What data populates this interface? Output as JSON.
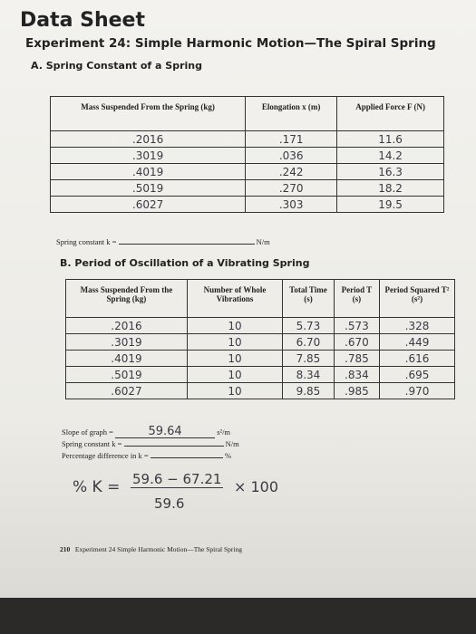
{
  "title": "Data Sheet",
  "experiment": "Experiment 24: Simple Harmonic Motion—The Spiral Spring",
  "section_a": {
    "title": "A. Spring Constant of a Spring",
    "table": {
      "headers": [
        "Mass Suspended From the Spring (kg)",
        "Elongation x (m)",
        "Applied Force F (N)"
      ],
      "rows": [
        [
          ".2016",
          ".171",
          "11.6"
        ],
        [
          ".3019",
          ".036",
          "14.2"
        ],
        [
          ".4019",
          ".242",
          "16.3"
        ],
        [
          ".5019",
          ".270",
          "18.2"
        ],
        [
          ".6027",
          ".303",
          "19.5"
        ]
      ]
    },
    "spring_constant": {
      "label": "Spring constant k =",
      "unit": "N/m"
    }
  },
  "section_b": {
    "title": "B. Period of Oscillation of a Vibrating Spring",
    "table": {
      "headers": [
        "Mass Suspended From the Spring (kg)",
        "Number of Whole Vibrations",
        "Total Time (s)",
        "Period T (s)",
        "Period Squared T² (s²)"
      ],
      "rows": [
        [
          ".2016",
          "10",
          "5.73",
          ".573",
          ".328"
        ],
        [
          ".3019",
          "10",
          "6.70",
          ".670",
          ".449"
        ],
        [
          ".4019",
          "10",
          "7.85",
          ".785",
          ".616"
        ],
        [
          ".5019",
          "10",
          "8.34",
          ".834",
          ".695"
        ],
        [
          ".6027",
          "10",
          "9.85",
          ".985",
          ".970"
        ]
      ]
    },
    "slope": {
      "label": "Slope of graph =",
      "value": "59.64",
      "unit": "s²/m"
    },
    "spring_constant": {
      "label": "Spring constant k =",
      "unit": "N/m"
    },
    "percentage_difference": {
      "label": "Percentage difference in k =",
      "unit": "%"
    }
  },
  "handwritten_formula": {
    "lhs": "% K =",
    "numerator": "59.6 − 67.21",
    "denominator": "59.6",
    "multiplier": "× 100"
  },
  "footer": {
    "page_number": "210",
    "text": "Experiment 24 Simple Harmonic Motion—The Spiral Spring"
  }
}
